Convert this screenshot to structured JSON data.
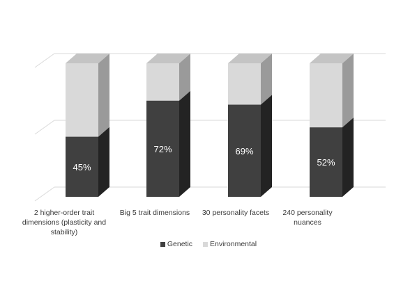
{
  "chart_data": {
    "type": "bar",
    "stacked": true,
    "percent_stacked": true,
    "three_d": true,
    "categories": [
      "2 higher-order trait dimensions (plasticity and stability)",
      "Big 5 trait dimensions",
      "30 personality facets",
      "240 personality nuances"
    ],
    "series": [
      {
        "name": "Genetic",
        "values": [
          45,
          72,
          69,
          52
        ],
        "color": "#404040"
      },
      {
        "name": "Environmental",
        "values": [
          55,
          28,
          31,
          48
        ],
        "color": "#d9d9d9"
      }
    ],
    "data_labels": [
      "45%",
      "72%",
      "69%",
      "52%"
    ],
    "ylim": [
      0,
      100
    ],
    "grid": true,
    "legend_position": "bottom",
    "colors": {
      "genetic_front": "#404040",
      "genetic_side": "#232323",
      "environmental_front": "#d9d9d9",
      "environmental_side": "#9a9a9a",
      "environmental_top": "#c4c4c4",
      "gridline": "#d9d9d9",
      "text": "#3a3a3a",
      "label_on_dark": "#ffffff"
    }
  }
}
